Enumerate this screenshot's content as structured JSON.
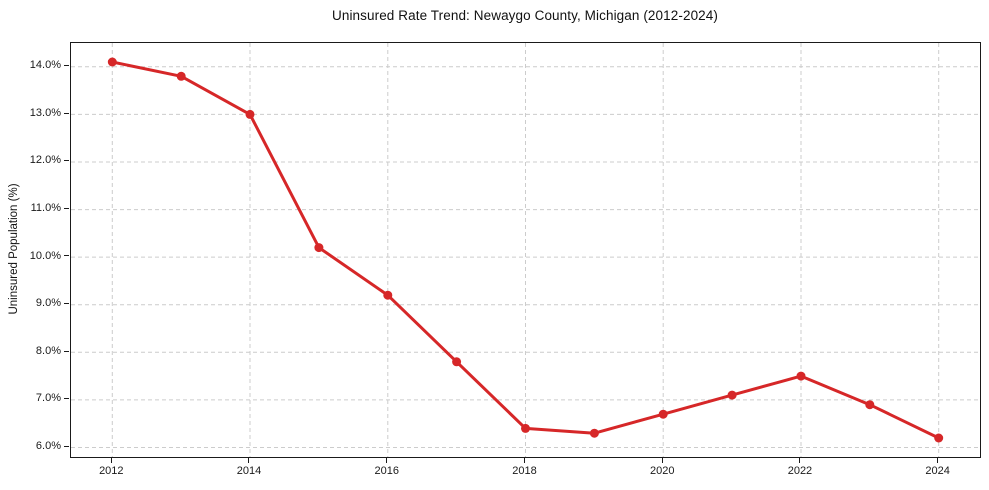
{
  "chart_data": {
    "type": "line",
    "title": "Uninsured Rate Trend: Newaygo County, Michigan (2012-2024)",
    "xlabel": "",
    "ylabel": "Uninsured Population (%)",
    "x": [
      2012,
      2013,
      2014,
      2015,
      2016,
      2017,
      2018,
      2019,
      2020,
      2021,
      2022,
      2023,
      2024
    ],
    "series": [
      {
        "name": "Uninsured Rate",
        "values": [
          14.1,
          13.8,
          13.0,
          10.2,
          9.2,
          7.8,
          6.4,
          6.3,
          6.7,
          7.1,
          7.5,
          6.9,
          6.2
        ]
      }
    ],
    "xlim": [
      2011.4,
      2024.6
    ],
    "ylim": [
      5.8,
      14.5
    ],
    "xticks": [
      {
        "v": 2012,
        "label": "2012"
      },
      {
        "v": 2014,
        "label": "2014"
      },
      {
        "v": 2016,
        "label": "2016"
      },
      {
        "v": 2018,
        "label": "2018"
      },
      {
        "v": 2020,
        "label": "2020"
      },
      {
        "v": 2022,
        "label": "2022"
      },
      {
        "v": 2024,
        "label": "2024"
      }
    ],
    "yticks": [
      {
        "v": 6.0,
        "label": "6.0%"
      },
      {
        "v": 7.0,
        "label": "7.0%"
      },
      {
        "v": 8.0,
        "label": "8.0%"
      },
      {
        "v": 9.0,
        "label": "9.0%"
      },
      {
        "v": 10.0,
        "label": "10.0%"
      },
      {
        "v": 11.0,
        "label": "11.0%"
      },
      {
        "v": 12.0,
        "label": "12.0%"
      },
      {
        "v": 13.0,
        "label": "13.0%"
      },
      {
        "v": 14.0,
        "label": "14.0%"
      }
    ],
    "grid": true,
    "legend": "none",
    "marker": "circle",
    "colors": {
      "line": "#d62728",
      "marker": "#d62728",
      "grid": "#cccccc",
      "spine": "#1a1a1a",
      "background": "#ffffff",
      "text": "#1a1a1a"
    }
  }
}
